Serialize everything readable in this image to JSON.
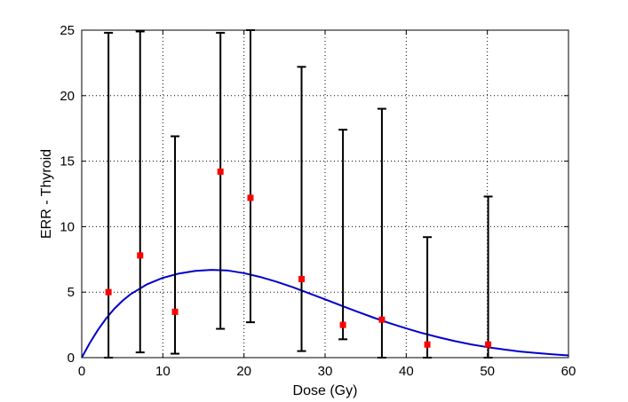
{
  "chart_data": {
    "type": "scatter",
    "title": "",
    "xlabel": "Dose (Gy)",
    "ylabel": "ERR - Thyroid",
    "xlim": [
      0,
      60
    ],
    "ylim": [
      0,
      25
    ],
    "xticks": [
      0,
      10,
      20,
      30,
      40,
      50,
      60
    ],
    "yticks": [
      0,
      5,
      10,
      15,
      20,
      25
    ],
    "grid": true,
    "grid_style": "dotted",
    "colors": {
      "points": "#ff0000",
      "curve": "#0000cc",
      "error_bars": "#000000"
    },
    "series": [
      {
        "type": "scatter-errorbar",
        "points": [
          {
            "x": 3.3,
            "y": 5.0,
            "lower": 0.0,
            "upper": 24.8
          },
          {
            "x": 7.2,
            "y": 7.8,
            "lower": 0.4,
            "upper": 24.9
          },
          {
            "x": 11.5,
            "y": 3.5,
            "lower": 0.3,
            "upper": 16.9
          },
          {
            "x": 17.1,
            "y": 14.2,
            "lower": 2.2,
            "upper": 24.8
          },
          {
            "x": 20.8,
            "y": 12.2,
            "lower": 2.7,
            "upper": 25.0
          },
          {
            "x": 27.1,
            "y": 6.0,
            "lower": 0.5,
            "upper": 22.2
          },
          {
            "x": 32.2,
            "y": 2.5,
            "lower": 1.4,
            "upper": 17.4
          },
          {
            "x": 37.0,
            "y": 2.9,
            "lower": 0.0,
            "upper": 19.0
          },
          {
            "x": 42.6,
            "y": 1.0,
            "lower": 0.0,
            "upper": 9.2
          },
          {
            "x": 50.1,
            "y": 1.0,
            "lower": 0.0,
            "upper": 12.3
          }
        ]
      },
      {
        "type": "line",
        "x": [
          0,
          1,
          2,
          3,
          4,
          5,
          6,
          8,
          10,
          12,
          14,
          16,
          18,
          20,
          22,
          24,
          26,
          28,
          30,
          32,
          34,
          36,
          38,
          40,
          42,
          44,
          46,
          48,
          50,
          52,
          54,
          56,
          58,
          60
        ],
        "y": [
          0.0,
          1.12,
          2.12,
          2.98,
          3.72,
          4.33,
          4.83,
          5.58,
          6.09,
          6.42,
          6.62,
          6.7,
          6.65,
          6.45,
          6.16,
          5.8,
          5.38,
          4.92,
          4.45,
          3.97,
          3.5,
          3.05,
          2.62,
          2.23,
          1.87,
          1.55,
          1.26,
          1.01,
          0.8,
          0.62,
          0.47,
          0.35,
          0.25,
          0.17
        ]
      }
    ]
  }
}
